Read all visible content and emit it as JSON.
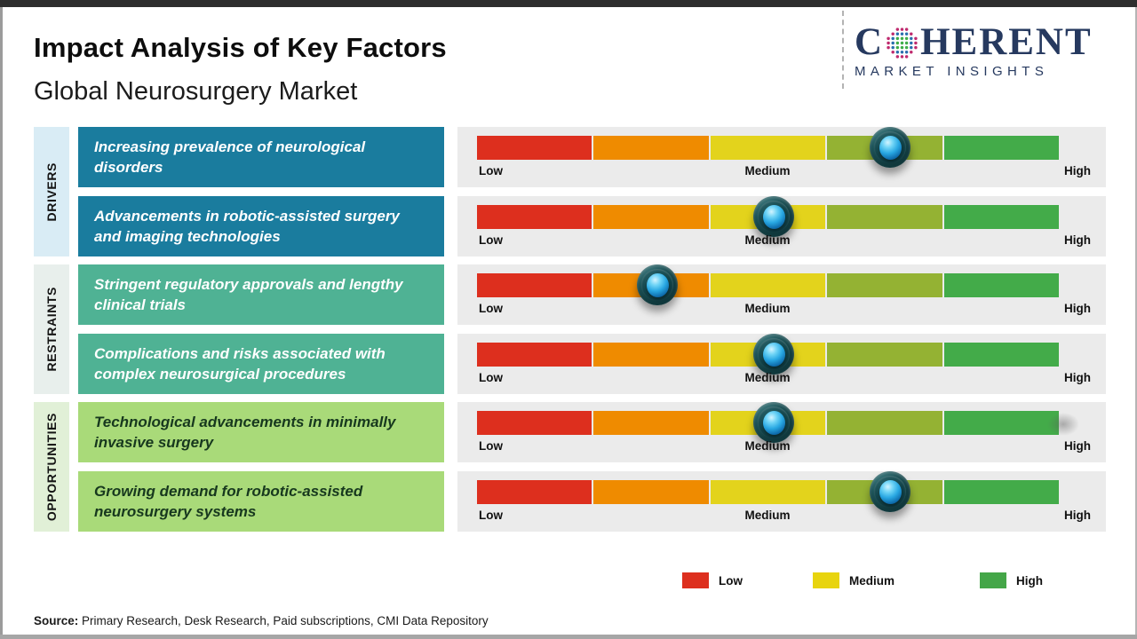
{
  "header": {
    "title": "Impact Analysis of Key Factors",
    "subtitle": "Global Neurosurgery Market",
    "logo": {
      "brand_c": "C",
      "brand_rest": "HERENT",
      "tagline": "MARKET INSIGHTS",
      "navy": "#26395f",
      "globe_colors": {
        "green": "#3fae49",
        "blue": "#2a6fae",
        "magenta": "#bf2a6e"
      }
    }
  },
  "groups": [
    {
      "label": "DRIVERS",
      "strip_color": "#d9ecf5",
      "box_color": "#1a7c9e",
      "text_color": "#ffffff",
      "factors": [
        {
          "text": "Increasing prevalence of neurological disorders",
          "marker_pct": 71,
          "impact": "Medium-High"
        },
        {
          "text": "Advancements in robotic-assisted surgery and imaging technologies",
          "marker_pct": 51,
          "impact": "Medium"
        }
      ]
    },
    {
      "label": "RESTRAINTS",
      "strip_color": "#e8efec",
      "box_color": "#4fb294",
      "text_color": "#ffffff",
      "factors": [
        {
          "text": "Stringent regulatory approvals and lengthy clinical trials",
          "marker_pct": 31,
          "impact": "Low-Medium"
        },
        {
          "text": "Complications and risks associated with complex neurosurgical procedures",
          "marker_pct": 51,
          "impact": "Medium"
        }
      ]
    },
    {
      "label": "OPPORTUNITIES",
      "strip_color": "#e1f0d7",
      "box_color": "#a9da79",
      "text_color": "#17381e",
      "factors": [
        {
          "text": "Technological advancements in minimally invasive surgery",
          "marker_pct": 51,
          "impact": "Medium"
        },
        {
          "text": "Growing demand for robotic-assisted neurosurgery systems",
          "marker_pct": 71,
          "impact": "Medium-High"
        }
      ]
    }
  ],
  "gauge": {
    "segment_colors": [
      "#dd2f1e",
      "#ef8b00",
      "#e3d31c",
      "#94b233",
      "#43ab49"
    ],
    "labels": {
      "low": "Low",
      "medium": "Medium",
      "high": "High"
    }
  },
  "legend": [
    {
      "label": "Low",
      "color": "#dd2f1e"
    },
    {
      "label": "Medium",
      "color": "#e8d40e"
    },
    {
      "label": "High",
      "color": "#44a648"
    }
  ],
  "source": {
    "prefix": "Source:",
    "text": " Primary Research, Desk Research, Paid subscriptions, CMI Data Repository"
  },
  "chart_data": {
    "type": "heatmap",
    "title": "Impact Analysis of Key Factors — Global Neurosurgery Market",
    "scale": {
      "min_label": "Low",
      "mid_label": "Medium",
      "max_label": "High",
      "range": [
        0,
        1
      ]
    },
    "rows": [
      {
        "category": "DRIVERS",
        "factor": "Increasing prevalence of neurological disorders",
        "position": 0.71,
        "impact": "Medium-High"
      },
      {
        "category": "DRIVERS",
        "factor": "Advancements in robotic-assisted surgery and imaging technologies",
        "position": 0.51,
        "impact": "Medium"
      },
      {
        "category": "RESTRAINTS",
        "factor": "Stringent regulatory approvals and lengthy clinical trials",
        "position": 0.31,
        "impact": "Low-Medium"
      },
      {
        "category": "RESTRAINTS",
        "factor": "Complications and risks associated with complex neurosurgical procedures",
        "position": 0.51,
        "impact": "Medium"
      },
      {
        "category": "OPPORTUNITIES",
        "factor": "Technological advancements in minimally invasive surgery",
        "position": 0.51,
        "impact": "Medium"
      },
      {
        "category": "OPPORTUNITIES",
        "factor": "Growing demand for robotic-assisted neurosurgery systems",
        "position": 0.71,
        "impact": "Medium-High"
      }
    ],
    "legend_position": "bottom"
  }
}
